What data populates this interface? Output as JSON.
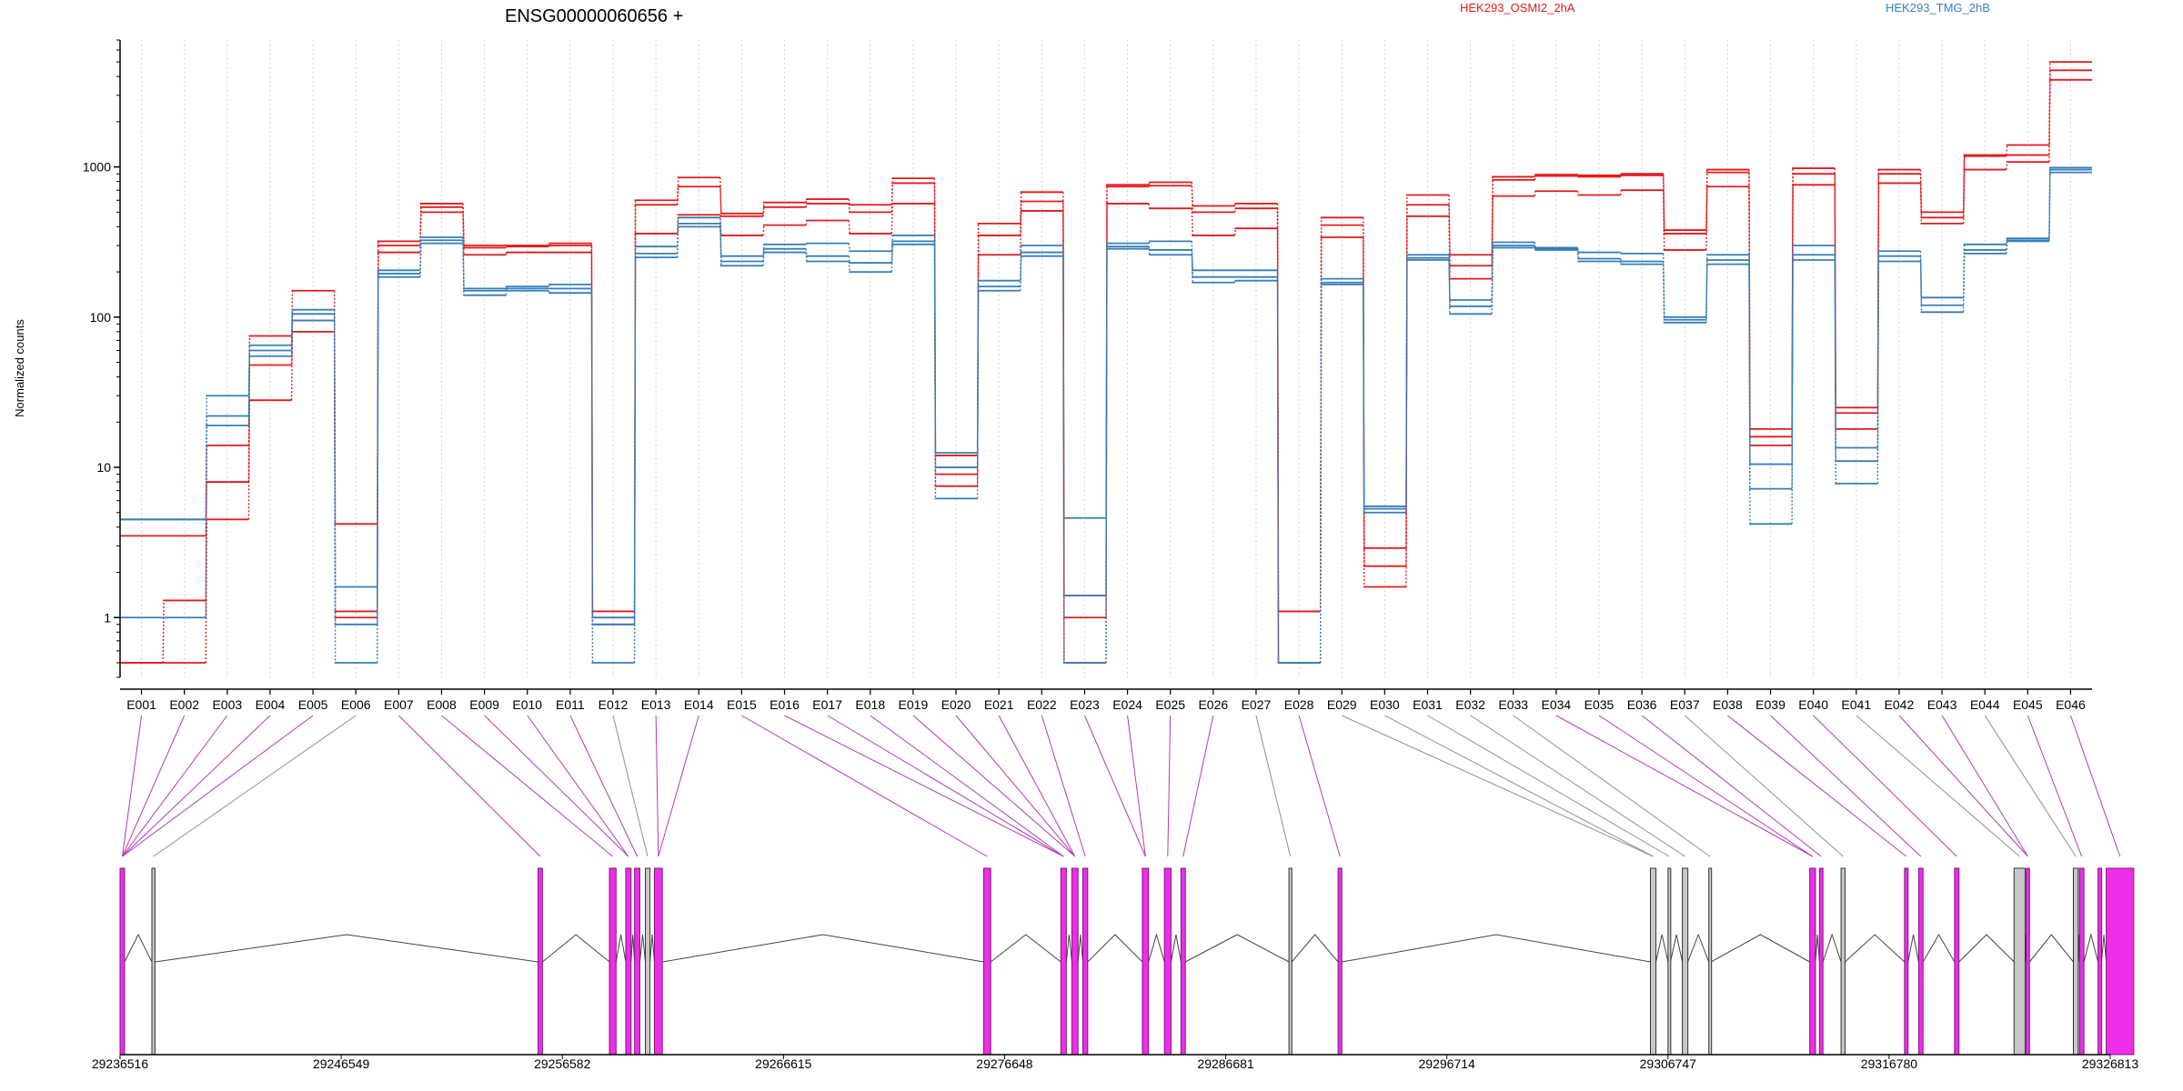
{
  "chart_data": {
    "type": "line",
    "title": "ENSG00000060656 +",
    "xlabel": "",
    "ylabel": "Normalized counts",
    "y_scale": "log",
    "ylim": [
      0.4,
      7000
    ],
    "y_ticks": [
      1,
      10,
      100,
      1000
    ],
    "y_tick_labels": [
      "1",
      "10",
      "100",
      "1000"
    ],
    "grid": "vertical dotted gridlines at each exon",
    "legend": [
      {
        "label": "HEK293_OSMI2_2hA",
        "color": "#e41a1c"
      },
      {
        "label": "HEK293_TMG_2hB",
        "color": "#377eb8"
      }
    ],
    "categories": [
      "E001",
      "E002",
      "E003",
      "E004",
      "E005",
      "E006",
      "E007",
      "E008",
      "E009",
      "E010",
      "E011",
      "E012",
      "E013",
      "E014",
      "E015",
      "E016",
      "E017",
      "E018",
      "E019",
      "E020",
      "E021",
      "E022",
      "E023",
      "E024",
      "E025",
      "E026",
      "E027",
      "E028",
      "E029",
      "E030",
      "E031",
      "E032",
      "E033",
      "E034",
      "E035",
      "E036",
      "E037",
      "E038",
      "E039",
      "E040",
      "E041",
      "E042",
      "E043",
      "E044",
      "E045",
      "E046"
    ],
    "series": [
      {
        "color": "#e41a1c",
        "values": [
          0.5,
          0.5,
          4.5,
          28,
          80,
          1.0,
          270,
          500,
          260,
          270,
          270,
          0.9,
          360,
          480,
          350,
          410,
          440,
          360,
          570,
          7.5,
          260,
          510,
          0.5,
          570,
          530,
          350,
          390,
          0.5,
          340,
          1.6,
          470,
          180,
          640,
          690,
          650,
          700,
          280,
          740,
          14,
          760,
          18,
          780,
          420,
          960,
          1080,
          3800
        ]
      },
      {
        "color": "#e41a1c",
        "values": [
          3.5,
          3.5,
          8,
          48,
          95,
          1.1,
          300,
          540,
          290,
          295,
          300,
          1.1,
          560,
          740,
          470,
          540,
          570,
          500,
          780,
          9,
          350,
          590,
          1.0,
          740,
          750,
          500,
          530,
          1.1,
          410,
          2.2,
          560,
          220,
          820,
          870,
          860,
          880,
          360,
          920,
          16,
          900,
          23,
          900,
          460,
          1180,
          1200,
          4400
        ]
      },
      {
        "color": "#e41a1c",
        "values": [
          0.5,
          1.3,
          14,
          75,
          150,
          4.2,
          320,
          570,
          300,
          300,
          310,
          1.0,
          600,
          850,
          490,
          580,
          610,
          560,
          840,
          12,
          420,
          680,
          1.4,
          760,
          790,
          550,
          570,
          1.1,
          460,
          2.9,
          650,
          260,
          860,
          890,
          880,
          900,
          380,
          960,
          18,
          980,
          25,
          960,
          500,
          1200,
          1400,
          5000
        ]
      },
      {
        "color": "#377eb8",
        "values": [
          1.0,
          1.0,
          19,
          55,
          95,
          0.5,
          185,
          310,
          140,
          150,
          145,
          0.5,
          250,
          400,
          220,
          270,
          235,
          200,
          305,
          6.2,
          150,
          255,
          0.5,
          285,
          260,
          170,
          175,
          0.5,
          165,
          5.0,
          240,
          105,
          290,
          280,
          235,
          225,
          92,
          225,
          4.2,
          240,
          7.8,
          235,
          108,
          265,
          320,
          920
        ]
      },
      {
        "color": "#377eb8",
        "values": [
          4.5,
          4.5,
          22,
          60,
          105,
          0.9,
          195,
          325,
          150,
          155,
          155,
          0.9,
          265,
          420,
          235,
          285,
          255,
          230,
          320,
          10,
          160,
          270,
          1.4,
          295,
          280,
          185,
          185,
          0.5,
          170,
          5.3,
          248,
          118,
          300,
          285,
          245,
          235,
          96,
          240,
          7.2,
          260,
          11,
          255,
          120,
          280,
          325,
          960
        ]
      },
      {
        "color": "#377eb8",
        "values": [
          4.5,
          4.5,
          30,
          65,
          112,
          1.6,
          205,
          340,
          155,
          160,
          165,
          1.0,
          295,
          460,
          255,
          305,
          310,
          275,
          350,
          12.5,
          175,
          300,
          4.6,
          310,
          320,
          205,
          205,
          0.5,
          180,
          5.5,
          260,
          130,
          315,
          290,
          270,
          265,
          100,
          260,
          10.5,
          300,
          13.5,
          275,
          135,
          305,
          335,
          990
        ]
      }
    ]
  },
  "track": {
    "coordinate_labels": [
      "29236516",
      "29246549",
      "29256582",
      "29266615",
      "29276648",
      "29286681",
      "29296714",
      "29306747",
      "29316780",
      "29326813"
    ],
    "genomic_start": 29236516,
    "genomic_end": 29326813,
    "exons": [
      {
        "start": 29236516,
        "end": 29236720,
        "type": "tested"
      },
      {
        "start": 29237960,
        "end": 29238100,
        "type": "untested"
      },
      {
        "start": 29255480,
        "end": 29255680,
        "type": "tested"
      },
      {
        "start": 29258720,
        "end": 29259020,
        "type": "tested"
      },
      {
        "start": 29259460,
        "end": 29259700,
        "type": "tested"
      },
      {
        "start": 29259860,
        "end": 29260100,
        "type": "tested"
      },
      {
        "start": 29260350,
        "end": 29260560,
        "type": "untested"
      },
      {
        "start": 29260760,
        "end": 29261120,
        "type": "tested"
      },
      {
        "start": 29275700,
        "end": 29276020,
        "type": "tested"
      },
      {
        "start": 29279200,
        "end": 29279450,
        "type": "tested"
      },
      {
        "start": 29279700,
        "end": 29279980,
        "type": "tested"
      },
      {
        "start": 29280200,
        "end": 29280420,
        "type": "tested"
      },
      {
        "start": 29282900,
        "end": 29283180,
        "type": "tested"
      },
      {
        "start": 29283900,
        "end": 29284200,
        "type": "tested"
      },
      {
        "start": 29284650,
        "end": 29284850,
        "type": "tested"
      },
      {
        "start": 29289550,
        "end": 29289680,
        "type": "untested"
      },
      {
        "start": 29291780,
        "end": 29291950,
        "type": "tested"
      },
      {
        "start": 29305950,
        "end": 29306200,
        "type": "untested"
      },
      {
        "start": 29306750,
        "end": 29306860,
        "type": "untested"
      },
      {
        "start": 29307400,
        "end": 29307650,
        "type": "untested"
      },
      {
        "start": 29308600,
        "end": 29308700,
        "type": "untested"
      },
      {
        "start": 29313180,
        "end": 29313440,
        "type": "tested"
      },
      {
        "start": 29313620,
        "end": 29313780,
        "type": "tested"
      },
      {
        "start": 29314600,
        "end": 29314780,
        "type": "untested"
      },
      {
        "start": 29317480,
        "end": 29317640,
        "type": "tested"
      },
      {
        "start": 29318120,
        "end": 29318320,
        "type": "tested"
      },
      {
        "start": 29319750,
        "end": 29319950,
        "type": "tested"
      },
      {
        "start": 29322450,
        "end": 29322950,
        "type": "untested"
      },
      {
        "start": 29323000,
        "end": 29323150,
        "type": "tested"
      },
      {
        "start": 29325140,
        "end": 29325360,
        "type": "untested"
      },
      {
        "start": 29325420,
        "end": 29325620,
        "type": "tested"
      },
      {
        "start": 29326260,
        "end": 29326420,
        "type": "tested"
      },
      {
        "start": 29326630,
        "end": 29327880,
        "type": "tested"
      }
    ],
    "exon_links": [
      0,
      0,
      0,
      0,
      0,
      1,
      2,
      3,
      4,
      4,
      5,
      6,
      7,
      7,
      8,
      9,
      9,
      9,
      10,
      10,
      10,
      11,
      12,
      12,
      13,
      14,
      15,
      16,
      17,
      17,
      18,
      19,
      20,
      21,
      21,
      22,
      23,
      24,
      25,
      26,
      27,
      28,
      28,
      29,
      30,
      32
    ]
  },
  "colors": {
    "up": "#e41a1c",
    "down": "#377eb8",
    "tested_exon_fill": "#ee2de8",
    "tested_exon_stroke": "#7a1a7a",
    "untested_exon_fill": "#c8c8c8",
    "link_tested": "#b53ab5",
    "link_untested": "#909090",
    "intron": "#444444",
    "axis": "#000000",
    "grid": "#d4d4d4"
  }
}
